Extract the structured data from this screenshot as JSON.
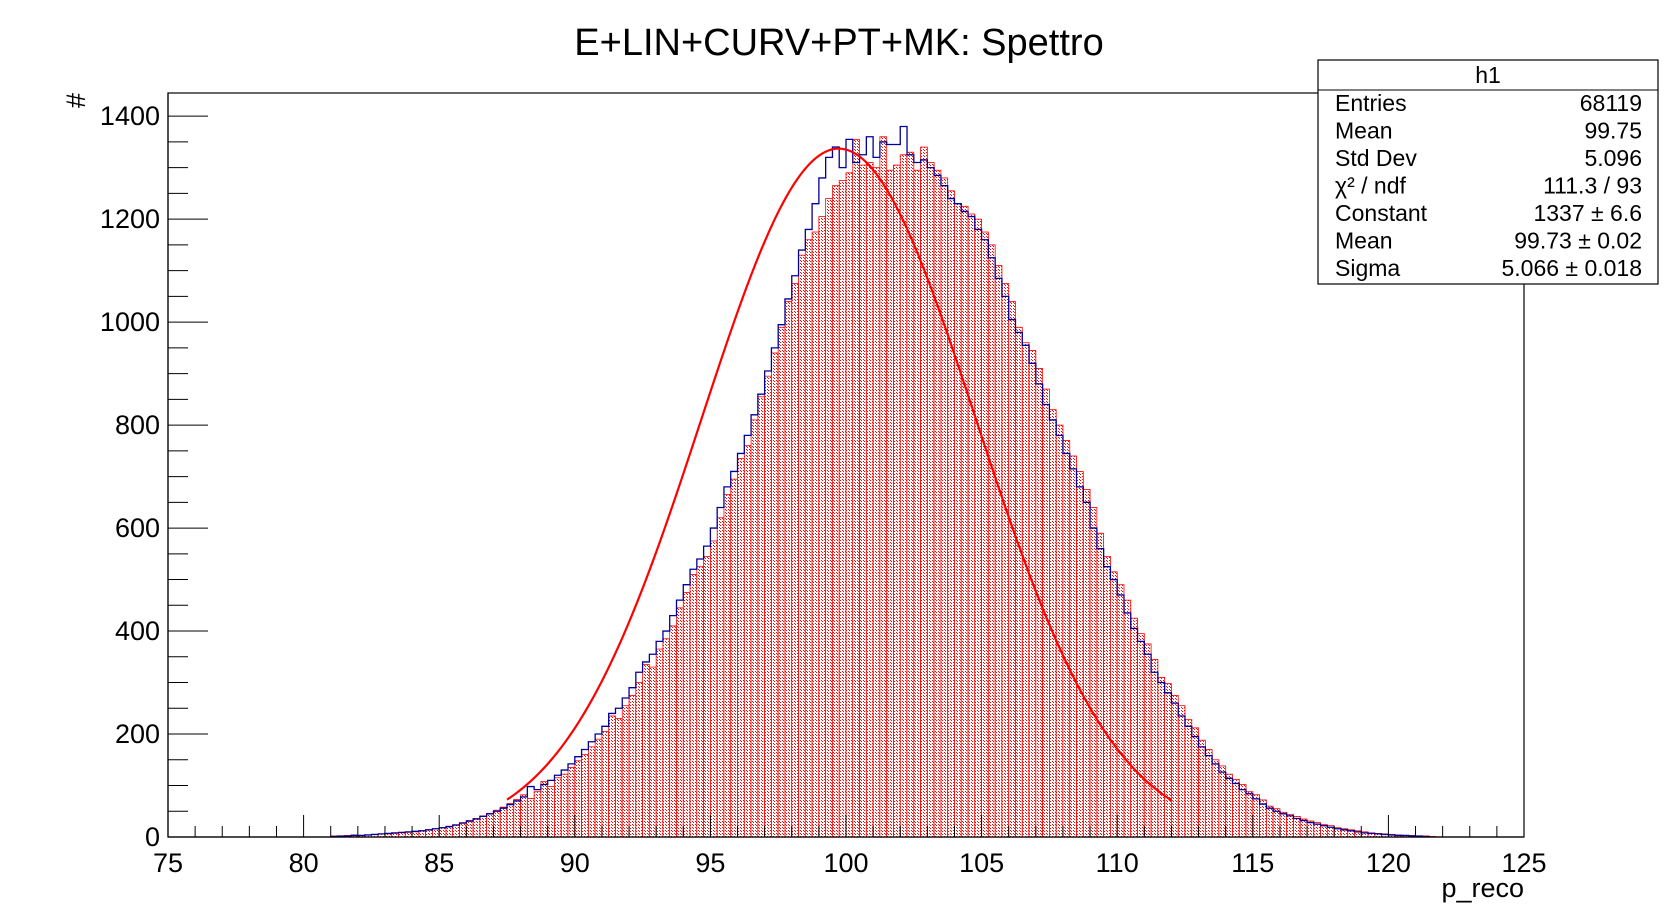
{
  "chart_data": {
    "type": "bar",
    "title": "E+LIN+CURV+PT+MK: Spettro",
    "xlabel": "p_reco",
    "ylabel": "#",
    "xlim": [
      75,
      125
    ],
    "ylim": [
      0,
      1445
    ],
    "x_ticks": [
      "75",
      "80",
      "85",
      "90",
      "95",
      "100",
      "105",
      "110",
      "115",
      "120",
      "125"
    ],
    "y_ticks": [
      "0",
      "200",
      "400",
      "600",
      "800",
      "1000",
      "1200",
      "1400"
    ],
    "grid": false,
    "legend": "none",
    "series": [
      {
        "style": "filled-hatched",
        "color": "#ff0000",
        "bin_width": 0.25,
        "x_start": 81,
        "values": [
          2,
          2,
          3,
          4,
          3,
          4,
          5,
          6,
          6,
          7,
          8,
          9,
          10,
          12,
          14,
          16,
          18,
          21,
          24,
          28,
          32,
          36,
          41,
          46,
          52,
          58,
          65,
          73,
          82,
          75,
          88,
          108,
          98,
          115,
          122,
          135,
          148,
          160,
          175,
          190,
          205,
          235,
          230,
          255,
          275,
          300,
          335,
          330,
          365,
          385,
          410,
          445,
          475,
          510,
          525,
          545,
          575,
          620,
          665,
          695,
          735,
          760,
          810,
          855,
          895,
          940,
          990,
          1040,
          1075,
          1130,
          1160,
          1175,
          1205,
          1240,
          1265,
          1275,
          1290,
          1355,
          1305,
          1310,
          1300,
          1360,
          1295,
          1305,
          1325,
          1330,
          1295,
          1340,
          1310,
          1295,
          1280,
          1255,
          1230,
          1225,
          1210,
          1200,
          1175,
          1150,
          1110,
          1075,
          1040,
          990,
          960,
          945,
          910,
          870,
          830,
          800,
          770,
          740,
          710,
          675,
          640,
          590,
          545,
          515,
          490,
          460,
          425,
          395,
          375,
          345,
          310,
          298,
          275,
          255,
          228,
          212,
          188,
          170,
          150,
          138,
          122,
          112,
          102,
          88,
          82,
          72,
          60,
          55,
          48,
          44,
          40,
          35,
          31,
          28,
          24,
          22,
          18,
          16,
          14,
          12,
          10,
          8,
          7,
          6,
          5,
          4,
          3,
          3,
          2,
          2,
          1
        ]
      },
      {
        "style": "outline",
        "color": "#000099",
        "bin_width": 0.25,
        "x_start": 81,
        "values": [
          1,
          2,
          2,
          3,
          3,
          4,
          5,
          6,
          7,
          8,
          9,
          10,
          11,
          12,
          14,
          16,
          18,
          20,
          23,
          27,
          31,
          35,
          40,
          45,
          50,
          56,
          63,
          70,
          78,
          98,
          92,
          102,
          110,
          120,
          130,
          142,
          156,
          170,
          185,
          200,
          215,
          240,
          250,
          270,
          290,
          320,
          340,
          355,
          380,
          400,
          430,
          460,
          490,
          520,
          540,
          565,
          600,
          640,
          680,
          710,
          745,
          780,
          820,
          860,
          905,
          950,
          995,
          1045,
          1090,
          1140,
          1180,
          1230,
          1280,
          1320,
          1340,
          1300,
          1355,
          1310,
          1325,
          1360,
          1320,
          1350,
          1345,
          1345,
          1380,
          1325,
          1310,
          1315,
          1300,
          1285,
          1265,
          1240,
          1230,
          1215,
          1205,
          1180,
          1160,
          1125,
          1085,
          1050,
          1005,
          980,
          955,
          920,
          880,
          840,
          810,
          780,
          745,
          715,
          680,
          650,
          600,
          560,
          525,
          500,
          470,
          435,
          405,
          380,
          355,
          320,
          300,
          280,
          260,
          235,
          215,
          195,
          175,
          158,
          142,
          126,
          114,
          104,
          92,
          84,
          74,
          64,
          56,
          50,
          45,
          41,
          36,
          32,
          28,
          25,
          22,
          19,
          16,
          14,
          12,
          10,
          8,
          7,
          6,
          5,
          4,
          3,
          3,
          2,
          2,
          1
        ]
      },
      {
        "name": "fit",
        "style": "gaussian-curve",
        "color": "#ff0000",
        "range": [
          87.5,
          112
        ],
        "constant": 1337,
        "mean": 99.73,
        "sigma": 5.066
      }
    ]
  },
  "stats_box": {
    "name": "h1",
    "rows": [
      {
        "label": "Entries",
        "value": "68119"
      },
      {
        "label": "Mean",
        "value": "99.75"
      },
      {
        "label": "Std Dev",
        "value": "5.096"
      },
      {
        "label": "χ² / ndf",
        "value": "111.3 / 93"
      },
      {
        "label": "Constant",
        "value": "1337 ± 6.6"
      },
      {
        "label": "Mean",
        "value": "99.73 ± 0.02"
      },
      {
        "label": "Sigma",
        "value": "5.066 ± 0.018"
      }
    ]
  },
  "colors": {
    "fill": "#ff0000",
    "outline": "#000099",
    "fit": "#ff0000",
    "axis": "#000000",
    "background": "#ffffff"
  }
}
